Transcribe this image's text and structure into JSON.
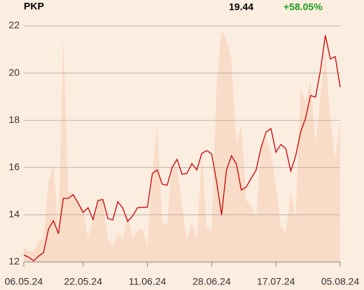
{
  "chart_data": {
    "type": "line",
    "title": "PKP",
    "last": 19.44,
    "change": "+58.05%",
    "series": [
      {
        "color": "#cc0000",
        "values": [
          12.3,
          12.2,
          12.05,
          12.25,
          12.4,
          13.4,
          13.75,
          13.2,
          14.7,
          14.7,
          14.85,
          14.5,
          14.1,
          14.3,
          13.8,
          14.6,
          14.65,
          13.85,
          13.78,
          14.55,
          14.3,
          13.72,
          13.95,
          14.3,
          14.32,
          14.32,
          15.75,
          15.9,
          15.3,
          15.25,
          16.0,
          16.35,
          15.72,
          15.75,
          16.17,
          15.9,
          16.6,
          16.72,
          16.58,
          15.4,
          14.0,
          15.9,
          16.5,
          16.15,
          15.05,
          15.18,
          15.55,
          15.9,
          16.85,
          17.5,
          17.65,
          16.65,
          16.98,
          16.8,
          15.85,
          16.5,
          17.5,
          18.1,
          19.05,
          18.98,
          20.1,
          21.6,
          20.6,
          20.7,
          19.4
        ]
      }
    ],
    "volume": {
      "color": "#f9dcc7",
      "values": [
        12.65,
        12.45,
        12.45,
        12.9,
        13.0,
        15.4,
        16.1,
        13.2,
        21.5,
        15.0,
        14.9,
        14.5,
        14.2,
        13.0,
        13.8,
        14.7,
        14.6,
        13.0,
        12.65,
        13.2,
        13.0,
        14.0,
        13.05,
        13.3,
        13.4,
        12.7,
        15.8,
        17.7,
        13.7,
        13.6,
        16.1,
        16.0,
        14.4,
        12.95,
        13.7,
        12.95,
        16.6,
        13.5,
        13.3,
        19.5,
        21.8,
        21.4,
        20.6,
        17.0,
        17.8,
        14.6,
        14.4,
        13.9,
        16.8,
        17.3,
        16.6,
        15.3,
        13.5,
        13.2,
        15.0,
        13.9,
        19.4,
        18.8,
        19.7,
        17.0,
        19.0,
        20.9,
        18.0,
        16.4,
        18.0
      ]
    },
    "xlim": [
      0,
      64
    ],
    "xticks": [
      {
        "value": 0,
        "label": "06.05.24"
      },
      {
        "value": 12,
        "label": "22.05.24"
      },
      {
        "value": 25,
        "label": "11.06.24"
      },
      {
        "value": 38,
        "label": "28.06.24"
      },
      {
        "value": 51,
        "label": "17.07.24"
      },
      {
        "value": 64,
        "label": "05.08.24"
      }
    ],
    "ylim": [
      12,
      22
    ],
    "yticks": [
      12,
      14,
      16,
      18,
      20,
      22
    ],
    "grid": true
  }
}
